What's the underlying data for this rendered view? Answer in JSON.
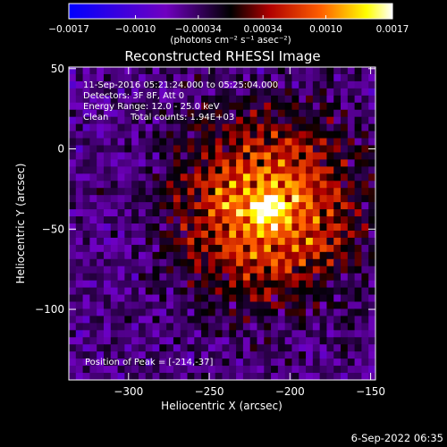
{
  "chart_data": {
    "type": "heatmap",
    "title": "Reconstructed RHESSI Image",
    "xlabel": "Heliocentric X (arcsec)",
    "ylabel": "Heliocentric Y (arcsec)",
    "xlim": [
      -337,
      -147
    ],
    "ylim": [
      -144,
      51
    ],
    "xticks": [
      -300,
      -250,
      -200,
      -150
    ],
    "xtick_labels": [
      "−300",
      "−250",
      "−200",
      "−150"
    ],
    "yticks": [
      50,
      0,
      -50,
      -100
    ],
    "ytick_labels": [
      "50",
      "0",
      "−50",
      "−100"
    ],
    "colorbar": {
      "min": -0.0017,
      "max": 0.0017,
      "ticks": [
        -0.0017,
        -0.001,
        -0.00034,
        0.00034,
        0.001,
        0.0017
      ],
      "tick_labels": [
        "−0.0017",
        "−0.0010",
        "−0.00034",
        "0.00034",
        "0.0010",
        "0.0017"
      ],
      "unit_label": "(photons cm⁻² s⁻¹ asec⁻²)",
      "colors": [
        "#0000ff",
        "#7000c0",
        "#000000",
        "#b00000",
        "#ff6000",
        "#ffff00",
        "#ffffff"
      ]
    },
    "annotations": {
      "time_range": "11-Sep-2016 05:21:24.000 to 05:25:04.000",
      "detectors": "Detectors: 3F 8F, Att 0",
      "energy": "Energy Range: 12.0 - 25.0 keV",
      "method": "Clean",
      "counts": "Total counts: 1.94E+03",
      "peak": "Position of Peak = [-214,-37]"
    },
    "peak": {
      "x": -214,
      "y": -37
    },
    "footer_timestamp": "6-Sep-2022 06:35"
  }
}
